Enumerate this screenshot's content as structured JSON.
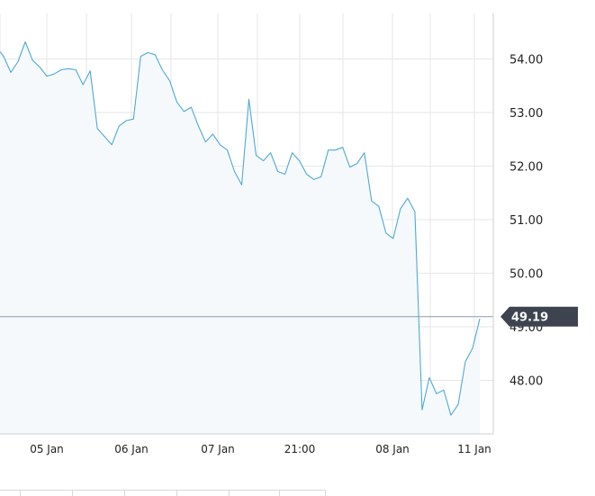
{
  "chart_data": {
    "type": "area",
    "title": "",
    "xlabel": "",
    "ylabel": "",
    "x_tick_labels": [
      "05 Jan",
      "06 Jan",
      "07 Jan",
      "21:00",
      "08 Jan",
      "11 Jan"
    ],
    "y_tick_labels": [
      "48.00",
      "49.00",
      "50.00",
      "51.00",
      "52.00",
      "53.00",
      "54.00"
    ],
    "y_ticks": [
      48,
      49,
      50,
      51,
      52,
      53,
      54
    ],
    "ylim": [
      47.0,
      54.85
    ],
    "grid": true,
    "current_price": 49.19,
    "current_price_label": "49.19",
    "series": [
      {
        "values": [
          54.22,
          54.05,
          53.75,
          53.95,
          54.32,
          53.98,
          53.85,
          53.68,
          53.72,
          53.8,
          53.82,
          53.8,
          53.52,
          53.78,
          52.7,
          52.55,
          52.4,
          52.75,
          52.85,
          52.88,
          54.05,
          54.12,
          54.08,
          53.8,
          53.6,
          53.2,
          53.02,
          53.1,
          52.75,
          52.45,
          52.6,
          52.4,
          52.3,
          51.9,
          51.65,
          53.25,
          52.2,
          52.1,
          52.25,
          51.9,
          51.85,
          52.25,
          52.1,
          51.85,
          51.75,
          51.8,
          52.3,
          52.3,
          52.35,
          51.98,
          52.05,
          52.25,
          51.35,
          51.25,
          50.75,
          50.65,
          51.2,
          51.4,
          51.15,
          47.45,
          48.05,
          47.75,
          47.82,
          47.35,
          47.55,
          48.35,
          48.6,
          49.15
        ]
      }
    ],
    "colors": {
      "line": "#4fa9d6",
      "fill": "#f5f9fc",
      "grid": "#e6e6e6",
      "price_line": "#8a9ab0",
      "price_badge": "#3d4450"
    }
  }
}
